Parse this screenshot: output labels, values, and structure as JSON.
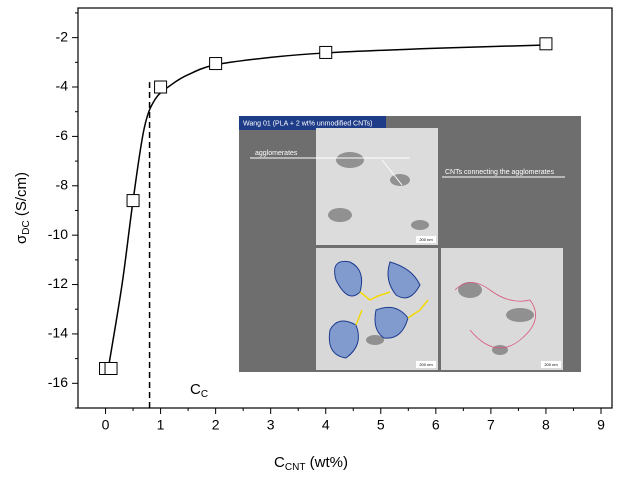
{
  "chart_data": {
    "type": "scatter",
    "x_label": {
      "main": "C",
      "sub": "CNT",
      "unit": " (wt%)"
    },
    "y_label": {
      "main": "σ",
      "sub": "DC",
      "unit": " (S/cm)"
    },
    "xlim": [
      -0.5,
      9.2
    ],
    "ylim": [
      -17,
      -0.8
    ],
    "xticks": [
      0,
      1,
      2,
      3,
      4,
      5,
      6,
      7,
      8,
      9
    ],
    "xminorticks": [
      0.5,
      1.5,
      2.5,
      3.5,
      4.5,
      5.5,
      6.5,
      7.5,
      8.5
    ],
    "yticks": [
      -16,
      -14,
      -12,
      -10,
      -8,
      -6,
      -4,
      -2
    ],
    "yminorticks": [
      -17,
      -15,
      -13,
      -11,
      -9,
      -7,
      -5,
      -3,
      -1
    ],
    "series": [
      {
        "color": "#000000",
        "marker": "open-square",
        "x": [
          0,
          0.1,
          0.5,
          1,
          2,
          4,
          8
        ],
        "values": [
          -15.4,
          -15.4,
          -8.6,
          -4,
          -3.05,
          -2.6,
          -2.25
        ]
      }
    ],
    "fit_curve": {
      "color": "#000000",
      "x": [
        0.05,
        0.3,
        0.5,
        0.7,
        0.9,
        1.2,
        1.5,
        2,
        3,
        4,
        6,
        8
      ],
      "values": [
        -15.4,
        -12,
        -8.6,
        -5.7,
        -4.5,
        -3.9,
        -3.5,
        -3.1,
        -2.8,
        -2.62,
        -2.43,
        -2.3
      ]
    },
    "threshold": {
      "x": 0.8,
      "y_top": -3.8,
      "label": {
        "main": "C",
        "sub": "C"
      }
    },
    "inset": {
      "title": "Wang 01 (PLA + 2 wt% unmodified CNTs)",
      "annotation_left": "agglomerates",
      "annotation_right": "CNTs connecting the agglomerates",
      "scale_bars": [
        "200 nm",
        "200 nm",
        "200 nm"
      ]
    }
  }
}
